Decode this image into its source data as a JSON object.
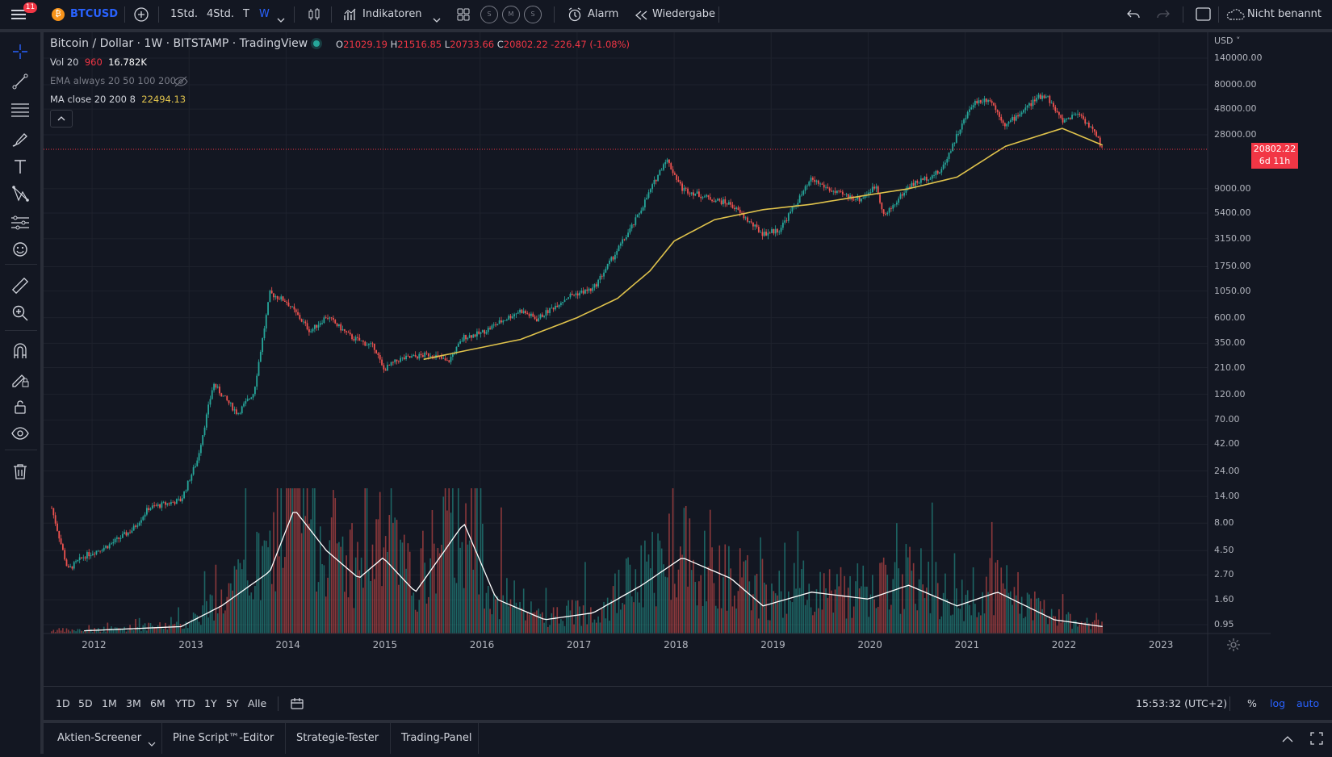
{
  "topbar": {
    "notif_count": "11",
    "symbol": "BTCUSD",
    "intervals": [
      "1Std.",
      "4Std.",
      "T",
      "W"
    ],
    "indicators_label": "Indikatoren",
    "alert_label": "Alarm",
    "replay_label": "Wiedergabe",
    "layout_name": "Nicht benannt",
    "icons": [
      "menu-icon",
      "bitcoin-icon",
      "plus-circle-icon",
      "chevron-down-icon",
      "candles-icon",
      "indicators-icon",
      "templates-icon",
      "alarm-clock-icon",
      "replay-icon",
      "undo-icon",
      "redo-icon",
      "fullscreen-icon",
      "cloud-icon"
    ],
    "circle_buttons": [
      "S",
      "M",
      "S"
    ]
  },
  "legend": {
    "title": "Bitcoin / Dollar · 1W · BITSTAMP · TradingView",
    "ohlc": {
      "o_label": "O",
      "o": "21029.19",
      "h_label": "H",
      "h": "21516.85",
      "l_label": "L",
      "l": "20733.66",
      "c_label": "C",
      "c": "20802.22",
      "change": "-226.47 (-1.08%)"
    },
    "vol": {
      "name": "Vol 20",
      "value1": "960",
      "value2": "16.782K"
    },
    "ema": {
      "name": "EMA always 20 50 100 200"
    },
    "ma": {
      "name": "MA close 20 200 8",
      "value": "22494.13"
    }
  },
  "colors": {
    "background": "#131722",
    "up": "#26a69a",
    "down": "#ef5350",
    "ma": "#e0c34c",
    "accent": "#2962ff",
    "price_tag": "#f23645"
  },
  "price_axis": {
    "currency": "USD",
    "ticks": [
      "140000.00",
      "80000.00",
      "48000.00",
      "28000.00",
      "9000.00",
      "5400.00",
      "3150.00",
      "1750.00",
      "1050.00",
      "600.00",
      "350.00",
      "210.00",
      "120.00",
      "70.00",
      "42.00",
      "24.00",
      "14.00",
      "8.00",
      "4.50",
      "2.70",
      "1.60",
      "0.95"
    ],
    "last_price": "20802.22",
    "countdown": "6d 11h"
  },
  "time_axis": {
    "ticks": [
      "2012",
      "2013",
      "2014",
      "2015",
      "2016",
      "2017",
      "2018",
      "2019",
      "2020",
      "2021",
      "2022",
      "2023"
    ]
  },
  "bottombar": {
    "ranges": [
      "1D",
      "5D",
      "1M",
      "3M",
      "6M",
      "YTD",
      "1Y",
      "5Y",
      "Alle"
    ],
    "time": "15:53:32 (UTC+2)",
    "percent": "%",
    "log": "log",
    "auto": "auto"
  },
  "panelbar": {
    "tabs": [
      "Aktien-Screener",
      "Pine Script™-Editor",
      "Strategie-Tester",
      "Trading-Panel"
    ]
  },
  "left_tools": [
    "crosshair-icon",
    "trendline-icon",
    "fib-icon",
    "brush-icon",
    "text-icon",
    "pattern-icon",
    "prediction-icon",
    "emoji-icon",
    "ruler-icon",
    "zoom-icon",
    "magnet-icon",
    "lock-drawing-icon",
    "lock-icon",
    "eye-icon",
    "trash-icon"
  ],
  "chart_data": {
    "type": "candlestick",
    "scale": "log",
    "ylim": [
      0.8,
      170000
    ],
    "x_range": [
      "2011-06",
      "2023-06"
    ],
    "price_path": [
      [
        "2011-08",
        11
      ],
      [
        "2011-10",
        3
      ],
      [
        "2011-12",
        4
      ],
      [
        "2012-03",
        5
      ],
      [
        "2012-06",
        7
      ],
      [
        "2012-08",
        11
      ],
      [
        "2012-12",
        13
      ],
      [
        "2013-02",
        30
      ],
      [
        "2013-04",
        150
      ],
      [
        "2013-05",
        120
      ],
      [
        "2013-07",
        80
      ],
      [
        "2013-09",
        125
      ],
      [
        "2013-11",
        1000
      ],
      [
        "2014-01",
        850
      ],
      [
        "2014-04",
        450
      ],
      [
        "2014-06",
        620
      ],
      [
        "2014-09",
        400
      ],
      [
        "2014-12",
        320
      ],
      [
        "2015-01",
        200
      ],
      [
        "2015-03",
        250
      ],
      [
        "2015-07",
        280
      ],
      [
        "2015-09",
        235
      ],
      [
        "2015-11",
        400
      ],
      [
        "2016-01",
        430
      ],
      [
        "2016-06",
        700
      ],
      [
        "2016-08",
        580
      ],
      [
        "2016-12",
        950
      ],
      [
        "2017-03",
        1100
      ],
      [
        "2017-06",
        2500
      ],
      [
        "2017-08",
        4300
      ],
      [
        "2017-12",
        17000
      ],
      [
        "2018-02",
        9000
      ],
      [
        "2018-05",
        7500
      ],
      [
        "2018-08",
        6500
      ],
      [
        "2018-11",
        4000
      ],
      [
        "2018-12",
        3500
      ],
      [
        "2019-02",
        3800
      ],
      [
        "2019-06",
        11000
      ],
      [
        "2019-09",
        8200
      ],
      [
        "2019-12",
        7200
      ],
      [
        "2020-02",
        9600
      ],
      [
        "2020-03",
        5000
      ],
      [
        "2020-06",
        9500
      ],
      [
        "2020-10",
        13000
      ],
      [
        "2020-12",
        28000
      ],
      [
        "2021-02",
        55000
      ],
      [
        "2021-04",
        60000
      ],
      [
        "2021-06",
        34000
      ],
      [
        "2021-10",
        61000
      ],
      [
        "2021-11",
        65000
      ],
      [
        "2022-01",
        37000
      ],
      [
        "2022-03",
        45000
      ],
      [
        "2022-05",
        29000
      ],
      [
        "2022-06",
        20802
      ]
    ],
    "ma_path": [
      [
        "2015-06",
        250
      ],
      [
        "2016-06",
        380
      ],
      [
        "2017-01",
        600
      ],
      [
        "2017-06",
        900
      ],
      [
        "2017-10",
        1600
      ],
      [
        "2018-01",
        3000
      ],
      [
        "2018-06",
        4700
      ],
      [
        "2018-12",
        5800
      ],
      [
        "2019-06",
        6500
      ],
      [
        "2020-01",
        7900
      ],
      [
        "2020-06",
        9000
      ],
      [
        "2020-12",
        11500
      ],
      [
        "2021-06",
        22000
      ],
      [
        "2022-01",
        32000
      ],
      [
        "2022-06",
        22494
      ]
    ],
    "volume_ma_path": [
      [
        "2011-12",
        0.02
      ],
      [
        "2012-12",
        0.05
      ],
      [
        "2013-05",
        0.2
      ],
      [
        "2013-11",
        0.45
      ],
      [
        "2014-02",
        0.9
      ],
      [
        "2014-06",
        0.6
      ],
      [
        "2014-10",
        0.4
      ],
      [
        "2015-01",
        0.55
      ],
      [
        "2015-05",
        0.3
      ],
      [
        "2015-11",
        0.8
      ],
      [
        "2016-03",
        0.25
      ],
      [
        "2016-09",
        0.1
      ],
      [
        "2017-03",
        0.15
      ],
      [
        "2017-09",
        0.35
      ],
      [
        "2018-02",
        0.55
      ],
      [
        "2018-08",
        0.4
      ],
      [
        "2018-12",
        0.2
      ],
      [
        "2019-06",
        0.3
      ],
      [
        "2020-01",
        0.25
      ],
      [
        "2020-06",
        0.35
      ],
      [
        "2020-12",
        0.2
      ],
      [
        "2021-05",
        0.3
      ],
      [
        "2021-12",
        0.1
      ],
      [
        "2022-06",
        0.05
      ]
    ]
  }
}
